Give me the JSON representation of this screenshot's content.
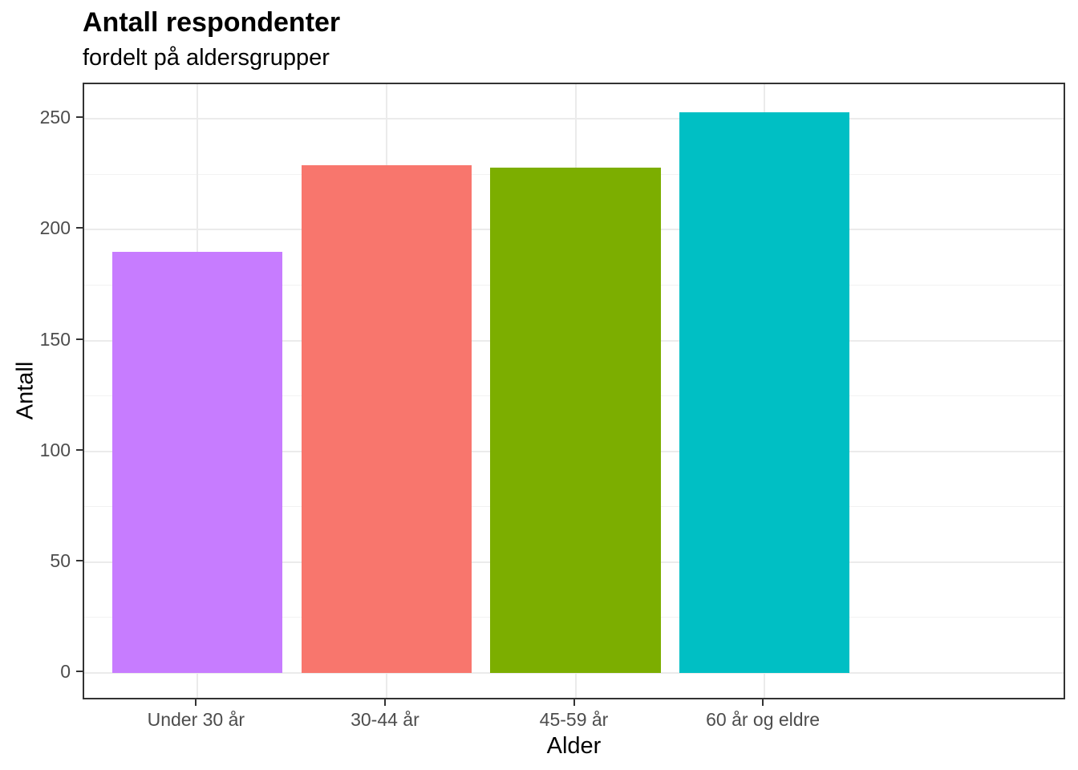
{
  "chart_data": {
    "type": "bar",
    "title": "Antall respondenter",
    "subtitle": "fordelt på aldersgrupper",
    "xlabel": "Alder",
    "ylabel": "Antall",
    "categories": [
      "Under 30 år",
      "30-44 år",
      "45-59 år",
      "60 år og eldre"
    ],
    "values": [
      190,
      229,
      228,
      253
    ],
    "bar_colors": [
      "#c77cff",
      "#f8766d",
      "#7cae00",
      "#00bfc4"
    ],
    "y_ticks": [
      0,
      50,
      100,
      150,
      200,
      250
    ],
    "y_minor_ticks": [
      25,
      75,
      125,
      175,
      225
    ],
    "ylim": [
      -12.65,
      265.65
    ],
    "grid": true,
    "legend_position": "none",
    "theme": {
      "panel_border_color": "#333333",
      "grid_major_color": "#ebebeb",
      "grid_minor_color": "#f2f2f2",
      "tick_color": "#333333",
      "tick_label_color": "#4d4d4d",
      "axis_title_color": "#000000",
      "title_color": "#000000",
      "background": "#ffffff",
      "bar_rel_width": 0.9,
      "category_padding": 0.6
    }
  }
}
